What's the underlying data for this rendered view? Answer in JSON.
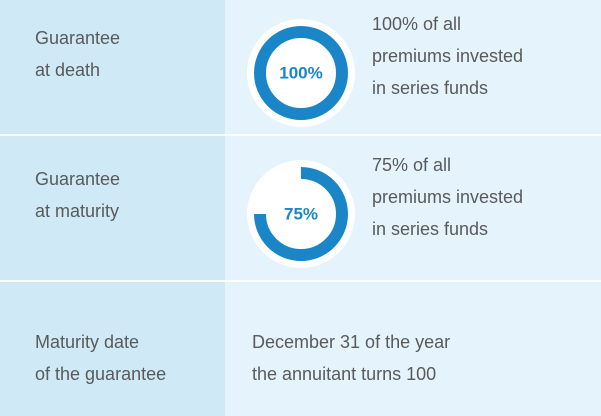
{
  "rows": [
    {
      "label": [
        "Guarantee",
        "at death"
      ],
      "gauge": {
        "value": 100,
        "label": "100%"
      },
      "text": [
        "100% of all",
        "premiums invested",
        "in series funds"
      ]
    },
    {
      "label": [
        "Guarantee",
        "at maturity"
      ],
      "gauge": {
        "value": 75,
        "label": "75%"
      },
      "text": [
        "75% of all",
        "premiums invested",
        "in series funds"
      ]
    },
    {
      "label": [
        "Maturity date",
        "of the guarantee"
      ],
      "text": [
        "December 31 of the year",
        "the annuitant turns 100"
      ]
    }
  ]
}
